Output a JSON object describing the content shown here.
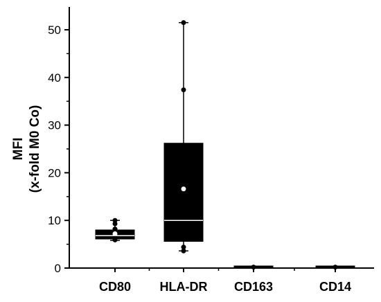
{
  "chart_data": {
    "type": "box",
    "ylabel": "MFI",
    "ylabel_sub": "(x-fold M0 Co)",
    "categories": [
      "CD80",
      "HLA-DR",
      "CD163",
      "CD14"
    ],
    "ylim": [
      0,
      55
    ],
    "yticks": [
      0,
      10,
      20,
      30,
      40,
      50
    ],
    "series": [
      {
        "category": "CD80",
        "min": 5.8,
        "q1": 6.1,
        "median": 6.8,
        "q3": 8.0,
        "max": 10.0,
        "mean": 7.2,
        "points": [
          5.9,
          6.3,
          8.2,
          9.3,
          10.0
        ]
      },
      {
        "category": "HLA-DR",
        "min": 3.6,
        "q1": 5.6,
        "median": 10.0,
        "q3": 26.2,
        "max": 51.5,
        "mean": 16.6,
        "points": [
          3.6,
          4.4,
          37.4,
          51.5
        ]
      },
      {
        "category": "CD163",
        "min": 0.1,
        "q1": 0.15,
        "median": 0.2,
        "q3": 0.25,
        "max": 0.3,
        "mean": 0.2,
        "points": [
          0.2
        ]
      },
      {
        "category": "CD14",
        "min": 0.1,
        "q1": 0.15,
        "median": 0.2,
        "q3": 0.25,
        "max": 0.3,
        "mean": 0.2,
        "points": [
          0.2
        ]
      }
    ],
    "colors": {
      "box": "#000000",
      "median": "#ffffff",
      "mean": "#ffffff",
      "axis": "#000000"
    }
  }
}
